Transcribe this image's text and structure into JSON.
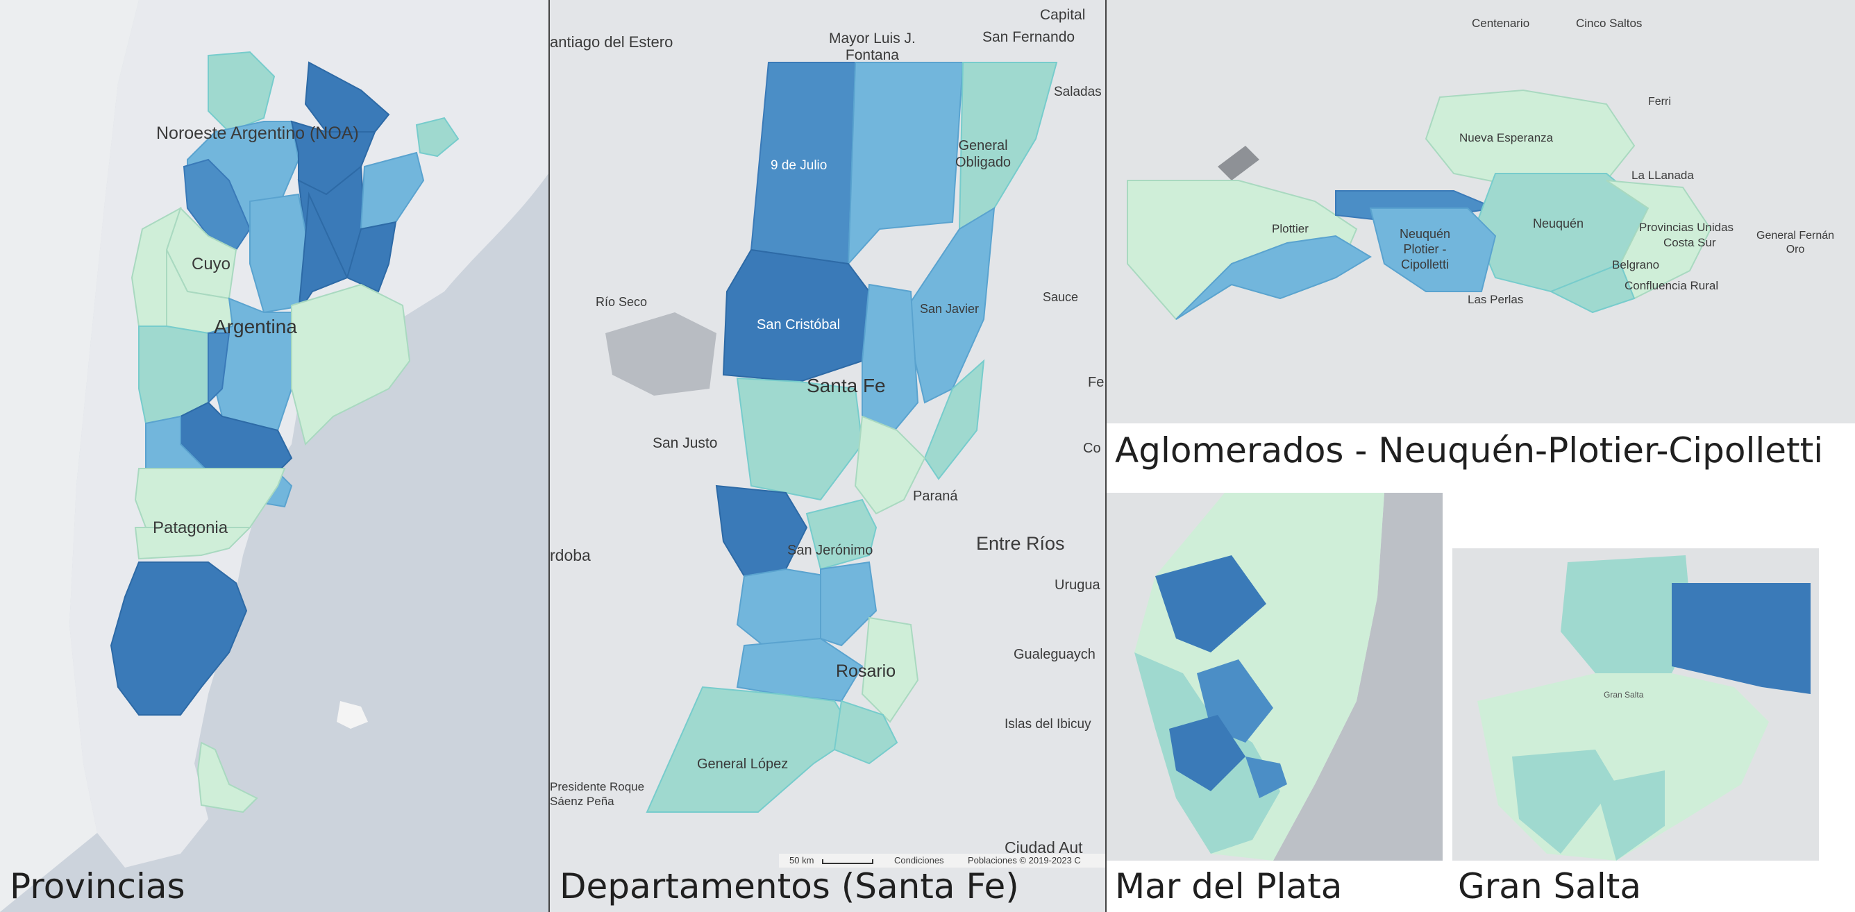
{
  "panels": {
    "provincias": {
      "caption": "Provincias",
      "labels": {
        "noa": "Noroeste Argentino (NOA)",
        "cuyo": "Cuyo",
        "argentina": "Argentina",
        "patagonia": "Patagonia"
      }
    },
    "departamentos": {
      "caption": "Departamentos (Santa Fe)",
      "labels": {
        "santiago": "antiago del Estero",
        "mayor": "Mayor Luis J.\nFontana",
        "capital": "Capital",
        "san_fernando": "San Fernando",
        "saladas": "Saladas",
        "nueve_julio": "9 de Julio",
        "general_obligado": "General\nObligado",
        "rio_seco": "Río Seco",
        "sauce": "Sauce",
        "san_cristobal": "San Cristóbal",
        "san_javier": "San Javier",
        "santa_fe": "Santa Fe",
        "fe": "Fe",
        "san_justo": "San Justo",
        "co": "Co",
        "parana": "Paraná",
        "entre_rios": "Entre Ríos",
        "cordoba": "rdoba",
        "san_jeronimo": "San Jerónimo",
        "urugua": "Urugua",
        "gualeguaych": "Gualeguaych",
        "rosario": "Rosario",
        "islas": "Islas del Ibicuy",
        "general_lopez": "General López",
        "pres_roque": "Presidente Roque\nSáenz Peña",
        "ciudad_aut": "Ciudad Aut",
        "scale": "50 km",
        "conditions": "Condiciones",
        "poblaciones": "Poblaciones © 2019-2023 C"
      }
    },
    "aglomerados": {
      "caption": "Aglomerados - Neuquén-Plotier-Cipolletti",
      "labels": {
        "centenario": "Centenario",
        "cinco_saltos": "Cinco Saltos",
        "ferri": "Ferri",
        "nueva_esperanza": "Nueva Esperanza",
        "la_llanada": "La LLanada",
        "plottier": "Plottier",
        "neuquen_city": "Neuquén",
        "provincias_unidas": "Provincias Unidas",
        "costa_sur": "Costa Sur",
        "general_fernandez": "General Fernán\nOro",
        "npc": "Neuquén\nPlotier -\nCipolletti",
        "belgrano": "Belgrano",
        "confluencia": "Confluencia Rural",
        "las_perlas": "Las Perlas"
      }
    },
    "mar_del_plata": {
      "caption": "Mar del Plata"
    },
    "gran_salta": {
      "caption": "Gran Salta",
      "labels": {
        "gran_salta_inner": "Gran Salta"
      }
    }
  },
  "colors": {
    "land": "#e5e7ea",
    "ocean": "#cfd6e0",
    "c1": "#cfeed8",
    "c2": "#9fd9cf",
    "c3": "#72b6dc",
    "c4": "#4b8ec6",
    "c5": "#3a7ab8"
  }
}
